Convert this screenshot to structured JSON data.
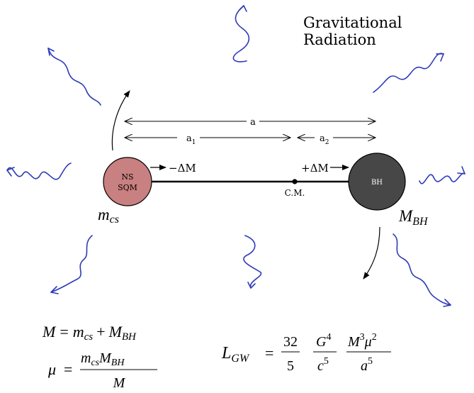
{
  "title": {
    "line1": "Gravitational",
    "line2": "Radiation"
  },
  "labels": {
    "sep_total": "a",
    "sep_a1": "a",
    "sep_a1_sub": "1",
    "sep_a2": "a",
    "sep_a2_sub": "2",
    "mass_loss": "−ΔM",
    "mass_gain": "+ΔM",
    "center_of_mass": "C.M."
  },
  "bodies": {
    "ns": {
      "line1": "NS",
      "line2": "SQM",
      "color": "#c98080"
    },
    "bh": {
      "line1": "BH",
      "color": "#474747"
    }
  },
  "mass_labels": {
    "m_cs": {
      "base": "m",
      "sub": "cs"
    },
    "M_BH": {
      "base": "M",
      "sub": "BH"
    }
  },
  "equations": {
    "total_mass": {
      "lhs": "M",
      "eq": "=",
      "t1": "m",
      "t1_sub": "cs",
      "plus": "+",
      "t2": "M",
      "t2_sub": "BH"
    },
    "reduced_mass": {
      "lhs": "μ",
      "eq": "=",
      "num_m": "m",
      "num_m_sub": "cs",
      "num_M": "M",
      "num_M_sub": "BH",
      "den": "M"
    },
    "luminosity": {
      "lhs": "L",
      "lhs_sub": "GW",
      "eq": "=",
      "f1_num": "32",
      "f1_den": "5",
      "f2_num": "G",
      "f2_num_sup": "4",
      "f2_den": "c",
      "f2_den_sup": "5",
      "f3_num_M": "M",
      "f3_num_M_sup": "3",
      "f3_num_mu": "μ",
      "f3_num_mu_sup": "2",
      "f3_den": "a",
      "f3_den_sup": "5"
    }
  },
  "colors": {
    "wave": "#2d3ab8",
    "ink": "#000000"
  }
}
